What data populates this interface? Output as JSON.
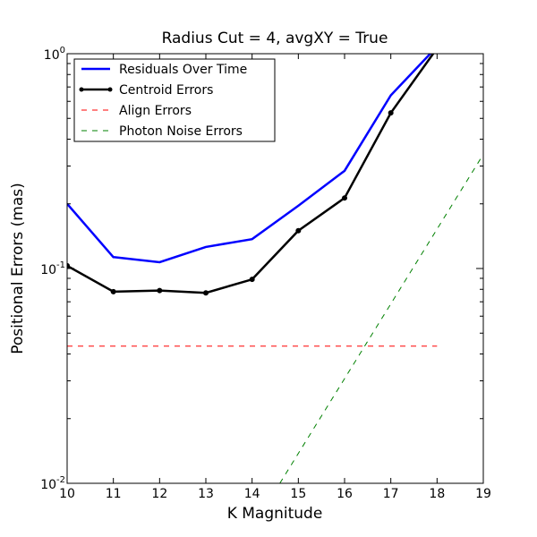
{
  "chart_data": {
    "type": "line",
    "title": "Radius Cut = 4, avgXY = True",
    "xlabel": "K Magnitude",
    "ylabel": "Positional Errors (mas)",
    "xlim": [
      10,
      19
    ],
    "ylim": [
      0.01,
      1.0
    ],
    "yscale": "log",
    "x_ticks": [
      "10",
      "11",
      "12",
      "13",
      "14",
      "15",
      "16",
      "17",
      "18",
      "19"
    ],
    "y_ticks": [
      {
        "value": 1.0,
        "base": "10",
        "exp": "0"
      },
      {
        "value": 0.1,
        "base": "10",
        "exp": "-1"
      },
      {
        "value": 0.01,
        "base": "10",
        "exp": "-2"
      }
    ],
    "legend_position": "upper-left",
    "series": [
      {
        "name": "Residuals Over Time",
        "color": "#0000ff",
        "style": "solid",
        "markers": false,
        "x": [
          10,
          11,
          12,
          13,
          14,
          15,
          16,
          17,
          18
        ],
        "y": [
          0.2,
          0.113,
          0.107,
          0.126,
          0.137,
          0.196,
          0.285,
          0.64,
          1.08
        ]
      },
      {
        "name": "Centroid Errors",
        "color": "#000000",
        "style": "solid",
        "markers": true,
        "x": [
          10,
          11,
          12,
          13,
          14,
          15,
          16,
          17,
          18
        ],
        "y": [
          0.103,
          0.078,
          0.079,
          0.077,
          0.089,
          0.15,
          0.213,
          0.53,
          1.06
        ]
      },
      {
        "name": "Align Errors",
        "color": "#ff0000",
        "style": "dashed",
        "markers": false,
        "x": [
          10,
          18
        ],
        "y": [
          0.0435,
          0.0435
        ]
      },
      {
        "name": "Photon Noise Errors",
        "color": "#008000",
        "style": "dashed",
        "markers": false,
        "x": [
          14.6,
          19
        ],
        "y": [
          0.01,
          0.34
        ]
      }
    ]
  }
}
